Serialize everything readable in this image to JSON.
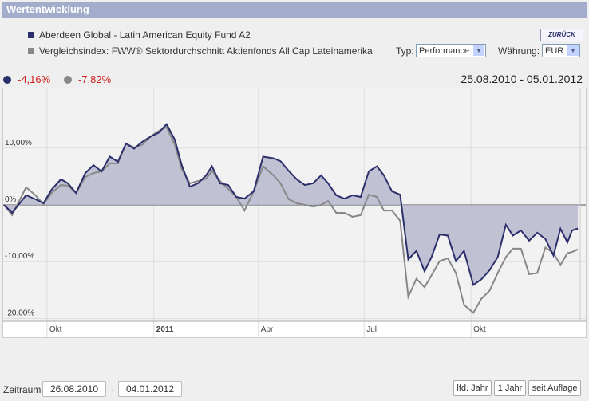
{
  "header": {
    "title": "Wertentwicklung"
  },
  "legend": [
    {
      "label": "Aberdeen Global - Latin American Equity Fund A2",
      "color": "#2b2f6b"
    },
    {
      "label": "Vergleichsindex: FWW® Sektordurchschnitt Aktienfonds All Cap Lateinamerika",
      "color": "#888888"
    }
  ],
  "zurueck": "ZURÜCK",
  "typ": {
    "label": "Typ:",
    "value": "Performance"
  },
  "waehrung": {
    "label": "Währung:",
    "value": "EUR"
  },
  "performance": {
    "fund": "-4,16%",
    "index": "-7,82%"
  },
  "range": "25.08.2010 - 05.01.2012",
  "chart_data": {
    "type": "line",
    "x_unit": "days since 25.08.2010",
    "x": [
      0,
      7,
      19,
      27,
      34,
      41,
      49,
      55,
      62,
      70,
      77,
      84,
      91,
      98,
      105,
      112,
      119,
      126,
      133,
      140,
      147,
      153,
      160,
      167,
      174,
      179,
      186,
      193,
      200,
      207,
      215,
      223,
      232,
      238,
      245,
      252,
      259,
      266,
      273,
      279,
      286,
      293,
      300,
      307,
      314,
      321,
      327,
      334,
      341,
      348,
      355,
      362,
      368,
      375,
      382,
      389,
      396,
      404,
      411,
      418,
      425,
      432,
      438,
      445,
      452,
      459,
      466,
      473,
      479,
      485,
      489,
      494
    ],
    "series": [
      {
        "name": "Aberdeen Global - Latin American Equity Fund A2",
        "color": "#2b2f6b",
        "values": [
          0,
          -1.4,
          1.7,
          1.0,
          0.3,
          2.7,
          4.5,
          3.8,
          2.1,
          5.6,
          7.0,
          5.9,
          8.5,
          7.6,
          10.8,
          9.9,
          11.1,
          12.0,
          12.7,
          14.2,
          11.5,
          7.0,
          3.2,
          3.8,
          5.2,
          6.8,
          3.8,
          3.5,
          1.4,
          1.1,
          2.4,
          8.5,
          8.2,
          7.7,
          6.0,
          4.5,
          3.5,
          3.8,
          5.2,
          3.8,
          1.7,
          1.1,
          1.7,
          1.4,
          5.9,
          6.8,
          5.2,
          2.4,
          1.8,
          -9.6,
          -8.1,
          -11.7,
          -9.2,
          -5.2,
          -5.4,
          -9.9,
          -8.1,
          -14.1,
          -13.1,
          -11.5,
          -9.2,
          -3.5,
          -5.4,
          -4.5,
          -6.3,
          -4.9,
          -6.0,
          -8.9,
          -4.2,
          -6.6,
          -4.5,
          -4.16
        ]
      },
      {
        "name": "Vergleichsindex",
        "color": "#888888",
        "values": [
          0,
          -1.8,
          3.1,
          1.7,
          0.1,
          2.1,
          3.5,
          3.4,
          2.1,
          4.9,
          5.6,
          5.9,
          7.3,
          7.3,
          10.8,
          10.1,
          10.6,
          12.0,
          13.0,
          13.7,
          10.6,
          6.3,
          3.8,
          4.2,
          4.6,
          6.0,
          4.2,
          2.8,
          1.4,
          -1.0,
          2.4,
          6.8,
          5.2,
          3.8,
          1.0,
          0.3,
          0,
          -0.3,
          0,
          0.7,
          -1.4,
          -1.4,
          -2.1,
          -1.8,
          1.8,
          1.4,
          -1.0,
          -1.0,
          -2.8,
          -16.2,
          -13.0,
          -14.5,
          -12.4,
          -9.9,
          -9.4,
          -12.0,
          -17.6,
          -19.0,
          -16.5,
          -15.1,
          -12.0,
          -9.2,
          -7.7,
          -7.7,
          -12.2,
          -12.0,
          -7.5,
          -8.5,
          -10.6,
          -8.5,
          -8.3,
          -7.82
        ]
      }
    ],
    "ylim": [
      -20.5,
      20.5
    ],
    "xlim": [
      0,
      496
    ],
    "yticks": [
      {
        "v": 10,
        "label": "10,00%"
      },
      {
        "v": 0,
        "label": "0%"
      },
      {
        "v": -10,
        "label": "-10,00%"
      },
      {
        "v": -20,
        "label": "-20,00%"
      }
    ],
    "xticks": [
      {
        "d": 37,
        "label": "Okt",
        "bold": false
      },
      {
        "d": 129,
        "label": "2011",
        "bold": true
      },
      {
        "d": 219,
        "label": "Apr",
        "bold": false
      },
      {
        "d": 310,
        "label": "Jul",
        "bold": false
      },
      {
        "d": 402,
        "label": "Okt",
        "bold": false
      }
    ],
    "navigator_labels": [
      {
        "d": 129,
        "label": "2011"
      },
      {
        "d": 310,
        "label": "Jul"
      }
    ]
  },
  "footer": {
    "zeitraum": "Zeitraum:",
    "from": "26.08.2010",
    "to": "04.01.2012",
    "sep": "-",
    "buttons": [
      "lfd. Jahr",
      "1 Jahr",
      "seit Auflage"
    ]
  }
}
